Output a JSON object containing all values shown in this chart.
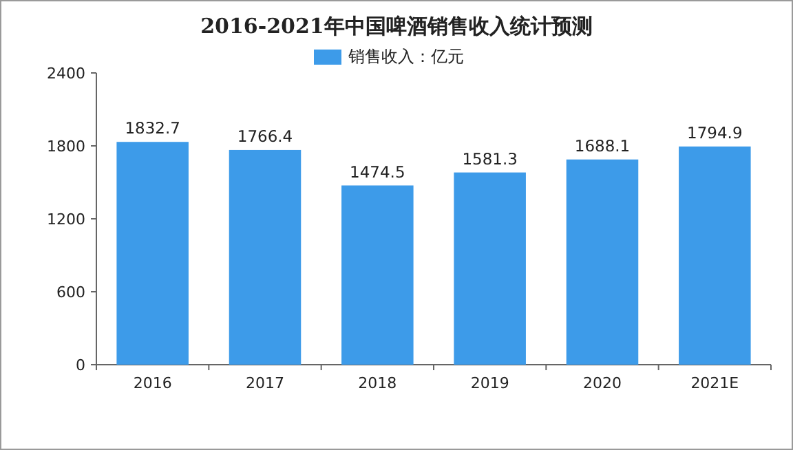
{
  "chart_data": {
    "type": "bar",
    "title": "2016-2021年中国啤酒销售收入统计预测",
    "categories": [
      "2016",
      "2017",
      "2018",
      "2019",
      "2020",
      "2021E"
    ],
    "series": [
      {
        "name": "销售收入：亿元",
        "color": "#3d9be9",
        "values": [
          1832.7,
          1766.4,
          1474.5,
          1581.3,
          1688.1,
          1794.9
        ]
      }
    ],
    "ylim": [
      0,
      2400
    ],
    "yticks": [
      0,
      600,
      1200,
      1800,
      2400
    ],
    "data_labels": true,
    "legend": "top",
    "grid": false
  }
}
